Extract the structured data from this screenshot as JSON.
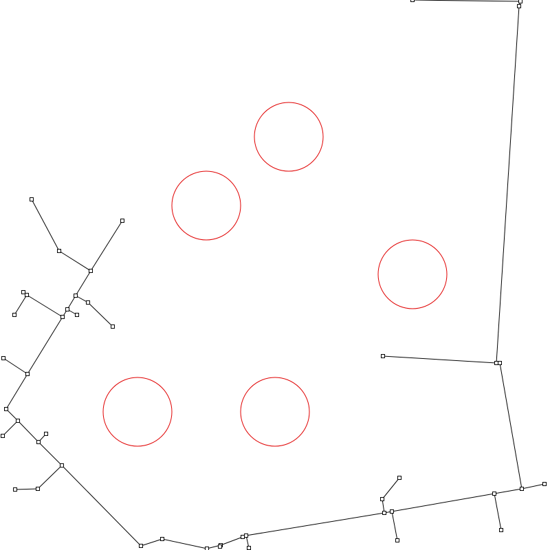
{
  "colors": {
    "background": "#ffffff",
    "edge": "#000000",
    "node_fill": "#ffffff",
    "node_stroke": "#000000",
    "obstacle": "#e00000"
  },
  "diagram": {
    "type": "rrt-tree-with-circular-obstacles",
    "obstacle_count": 5,
    "node_count": 50
  }
}
